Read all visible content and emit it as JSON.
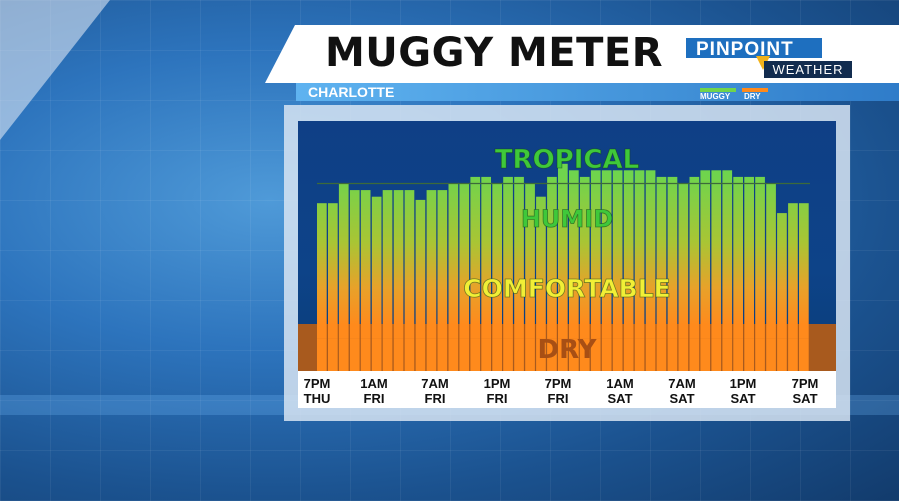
{
  "title": "MUGGY METER",
  "location": "CHARLOTTE",
  "logo": {
    "top": "PINPOINT",
    "bottom": "WEATHER"
  },
  "legend": [
    {
      "label": "MUGGY",
      "color": "#6fd44d"
    },
    {
      "label": "DRY",
      "color": "#ff8a1c"
    }
  ],
  "chart_data": {
    "type": "bar",
    "title": "MUGGY METER",
    "subtitle": "CHARLOTTE",
    "zones": [
      "TROPICAL",
      "HUMID",
      "COMFORTABLE",
      "DRY"
    ],
    "x_ticks": [
      {
        "time": "7PM",
        "day": "THU"
      },
      {
        "time": "1AM",
        "day": "FRI"
      },
      {
        "time": "7AM",
        "day": "FRI"
      },
      {
        "time": "1PM",
        "day": "FRI"
      },
      {
        "time": "7PM",
        "day": "FRI"
      },
      {
        "time": "1AM",
        "day": "SAT"
      },
      {
        "time": "7AM",
        "day": "SAT"
      },
      {
        "time": "1PM",
        "day": "SAT"
      },
      {
        "time": "7PM",
        "day": "SAT"
      }
    ],
    "values": [
      65.5,
      65.5,
      68.5,
      67.5,
      67.5,
      66.5,
      67.5,
      67.5,
      67.5,
      66,
      67.5,
      67.5,
      68.5,
      68.5,
      69.5,
      69.5,
      68.5,
      69.5,
      69.5,
      68.5,
      66.5,
      69.5,
      71.5,
      70.5,
      69.5,
      70.5,
      70.5,
      70.5,
      70.5,
      70.5,
      70.5,
      69.5,
      69.5,
      68.5,
      69.5,
      70.5,
      70.5,
      70.5,
      69.5,
      69.5,
      69.5,
      68.5,
      64,
      65.5,
      65.5
    ],
    "ylim": [
      40,
      78
    ],
    "dry_threshold": 45,
    "reference_line": 68.5,
    "colors": {
      "muggy": "#6fd44d",
      "dry": "#ff8a1c"
    }
  }
}
